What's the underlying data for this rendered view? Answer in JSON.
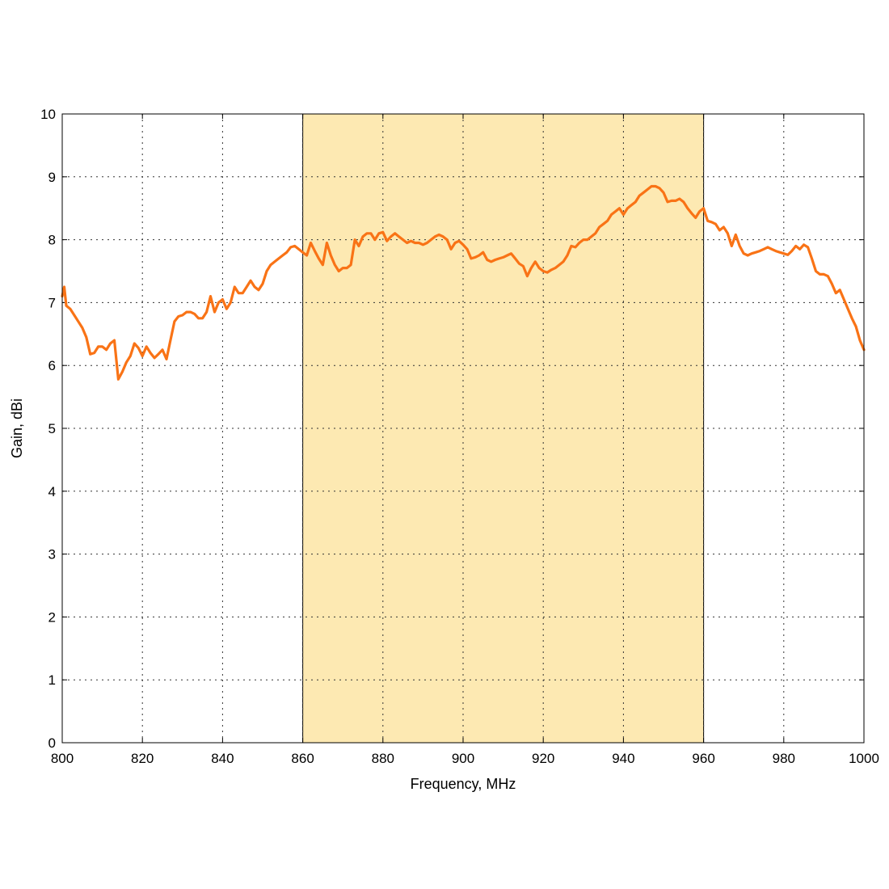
{
  "chart_data": {
    "type": "line",
    "title": "",
    "xlabel": "Frequency, MHz",
    "ylabel": "Gain, dBi",
    "xlim": [
      800,
      1000
    ],
    "ylim": [
      0,
      10
    ],
    "xticks": [
      "800",
      "820",
      "840",
      "860",
      "880",
      "900",
      "920",
      "940",
      "960",
      "980",
      "1000"
    ],
    "yticks": [
      "0",
      "1",
      "2",
      "3",
      "4",
      "5",
      "6",
      "7",
      "8",
      "9",
      "10"
    ],
    "grid": true,
    "highlight_band": {
      "x_start": 860,
      "x_end": 960,
      "color": "#fde9b2"
    },
    "line_color": "#f97316",
    "series": [
      {
        "x": [
          800,
          800.5,
          801,
          802,
          803,
          804,
          805,
          806,
          807,
          808,
          809,
          810,
          811,
          812,
          813,
          814,
          815,
          816,
          817,
          818,
          819,
          820,
          821,
          822,
          823,
          824,
          825,
          826,
          827,
          828,
          829,
          830,
          831,
          832,
          833,
          834,
          835,
          836,
          837,
          838,
          839,
          840,
          841,
          842,
          843,
          844,
          845,
          846,
          847,
          848,
          849,
          850,
          851,
          852,
          853,
          854,
          855,
          856,
          857,
          858,
          859,
          860,
          861,
          862,
          863,
          864,
          865,
          866,
          867,
          868,
          869,
          870,
          871,
          872,
          873,
          874,
          875,
          876,
          877,
          878,
          879,
          880,
          881,
          882,
          883,
          884,
          885,
          886,
          887,
          888,
          889,
          890,
          891,
          892,
          893,
          894,
          895,
          896,
          897,
          898,
          899,
          900,
          901,
          902,
          903,
          904,
          905,
          906,
          907,
          908,
          909,
          910,
          911,
          912,
          913,
          914,
          915,
          916,
          917,
          918,
          919,
          920,
          921,
          922,
          923,
          924,
          925,
          926,
          927,
          928,
          929,
          930,
          931,
          932,
          933,
          934,
          935,
          936,
          937,
          938,
          939,
          940,
          941,
          942,
          943,
          944,
          945,
          946,
          947,
          948,
          949,
          950,
          951,
          952,
          953,
          954,
          955,
          956,
          957,
          958,
          959,
          960,
          961,
          962,
          963,
          964,
          965,
          966,
          967,
          968,
          969,
          970,
          971,
          972,
          973,
          974,
          975,
          976,
          977,
          978,
          979,
          980,
          981,
          982,
          983,
          984,
          985,
          986,
          987,
          988,
          989,
          990,
          991,
          992,
          993,
          994,
          995,
          996,
          997,
          998,
          999,
          1000
        ],
        "y": [
          7.1,
          7.25,
          6.95,
          6.9,
          6.8,
          6.7,
          6.6,
          6.45,
          6.18,
          6.2,
          6.3,
          6.3,
          6.25,
          6.35,
          6.4,
          5.78,
          5.9,
          6.05,
          6.15,
          6.35,
          6.28,
          6.15,
          6.3,
          6.2,
          6.12,
          6.18,
          6.25,
          6.1,
          6.4,
          6.7,
          6.78,
          6.8,
          6.85,
          6.85,
          6.82,
          6.75,
          6.75,
          6.85,
          7.1,
          6.85,
          7.0,
          7.05,
          6.9,
          7.0,
          7.25,
          7.15,
          7.15,
          7.25,
          7.35,
          7.25,
          7.2,
          7.3,
          7.5,
          7.6,
          7.65,
          7.7,
          7.75,
          7.8,
          7.88,
          7.9,
          7.85,
          7.8,
          7.75,
          7.95,
          7.82,
          7.7,
          7.6,
          7.95,
          7.75,
          7.6,
          7.5,
          7.55,
          7.55,
          7.6,
          8.0,
          7.9,
          8.05,
          8.1,
          8.1,
          8.0,
          8.1,
          8.12,
          7.98,
          8.05,
          8.1,
          8.05,
          8.0,
          7.95,
          7.98,
          7.95,
          7.95,
          7.92,
          7.95,
          8.0,
          8.05,
          8.08,
          8.05,
          8.0,
          7.85,
          7.95,
          7.98,
          7.92,
          7.85,
          7.7,
          7.72,
          7.75,
          7.8,
          7.68,
          7.65,
          7.68,
          7.7,
          7.72,
          7.75,
          7.78,
          7.7,
          7.62,
          7.58,
          7.42,
          7.55,
          7.65,
          7.55,
          7.5,
          7.48,
          7.52,
          7.55,
          7.6,
          7.65,
          7.75,
          7.9,
          7.88,
          7.95,
          8.0,
          8.0,
          8.05,
          8.1,
          8.2,
          8.25,
          8.3,
          8.4,
          8.45,
          8.5,
          8.4,
          8.5,
          8.55,
          8.6,
          8.7,
          8.75,
          8.8,
          8.85,
          8.85,
          8.82,
          8.75,
          8.6,
          8.62,
          8.62,
          8.65,
          8.6,
          8.5,
          8.42,
          8.35,
          8.45,
          8.5,
          8.3,
          8.28,
          8.25,
          8.15,
          8.2,
          8.1,
          7.9,
          8.08,
          7.9,
          7.78,
          7.75,
          7.78,
          7.8,
          7.82,
          7.85,
          7.88,
          7.85,
          7.82,
          7.8,
          7.78,
          7.76,
          7.82,
          7.9,
          7.85,
          7.92,
          7.88,
          7.7,
          7.5,
          7.45,
          7.45,
          7.42,
          7.3,
          7.15,
          7.2,
          7.05,
          6.9,
          6.75,
          6.62,
          6.4,
          6.25
        ]
      }
    ]
  }
}
